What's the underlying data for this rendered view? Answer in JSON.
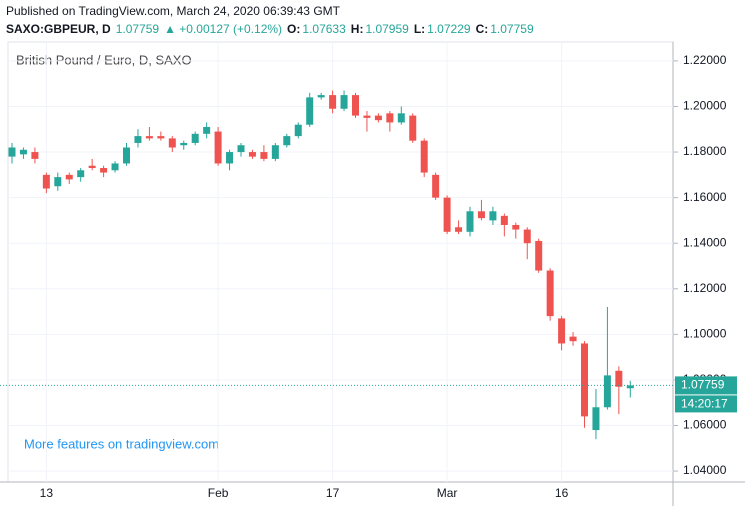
{
  "header": {
    "published": "Published on TradingView.com, March 24, 2020 06:39:43 GMT",
    "symbol": "SAXO:GBPEUR, D",
    "last": "1.07759",
    "change": "▲ +0.00127 (+0.12%)",
    "ohlc": [
      {
        "label": "O:",
        "value": "1.07633"
      },
      {
        "label": "H:",
        "value": "1.07959"
      },
      {
        "label": "L:",
        "value": "1.07229"
      },
      {
        "label": "C:",
        "value": "1.07759"
      }
    ]
  },
  "chart_data": {
    "type": "candlestick",
    "title": "British Pound / Euro, D, SAXO",
    "annotation": "More features on tradingview.com",
    "last_price": 1.07759,
    "countdown": "14:20:17",
    "up_color": "#26a69a",
    "down_color": "#ef5350",
    "grid": true,
    "ylim": [
      1.0352,
      1.2283
    ],
    "yticks": [
      {
        "value": 1.04,
        "label": "1.04000"
      },
      {
        "value": 1.06,
        "label": "1.06000"
      },
      {
        "value": 1.08,
        "label": "1.08000"
      },
      {
        "value": 1.1,
        "label": "1.10000"
      },
      {
        "value": 1.12,
        "label": "1.12000"
      },
      {
        "value": 1.14,
        "label": "1.14000"
      },
      {
        "value": 1.16,
        "label": "1.16000"
      },
      {
        "value": 1.18,
        "label": "1.18000"
      },
      {
        "value": 1.2,
        "label": "1.20000"
      },
      {
        "value": 1.22,
        "label": "1.22000"
      }
    ],
    "categories": [
      null,
      null,
      null,
      "13",
      null,
      null,
      null,
      null,
      null,
      null,
      null,
      null,
      null,
      null,
      null,
      null,
      null,
      null,
      "Feb",
      null,
      null,
      null,
      null,
      null,
      null,
      null,
      null,
      null,
      "17",
      null,
      null,
      null,
      null,
      null,
      null,
      null,
      null,
      null,
      "Mar",
      null,
      null,
      null,
      null,
      null,
      null,
      null,
      null,
      null,
      "16",
      null,
      null,
      null,
      null,
      null,
      null
    ],
    "open": [
      1.178,
      1.179,
      1.18,
      1.17,
      1.165,
      1.17,
      1.169,
      1.174,
      1.173,
      1.172,
      1.175,
      1.184,
      1.187,
      1.187,
      1.186,
      1.183,
      1.184,
      1.188,
      1.189,
      1.175,
      1.18,
      1.18,
      1.18,
      1.177,
      1.183,
      1.187,
      1.192,
      1.204,
      1.205,
      1.199,
      1.205,
      1.196,
      1.196,
      1.197,
      1.193,
      1.196,
      1.185,
      1.17,
      1.16,
      1.147,
      1.145,
      1.154,
      1.15,
      1.152,
      1.148,
      1.146,
      1.141,
      1.128,
      1.107,
      1.099,
      1.096,
      1.058,
      1.068,
      1.084,
      1.07633
    ],
    "high": [
      1.184,
      1.182,
      1.182,
      1.171,
      1.171,
      1.171,
      1.173,
      1.177,
      1.174,
      1.176,
      1.184,
      1.19,
      1.191,
      1.189,
      1.187,
      1.185,
      1.189,
      1.193,
      1.191,
      1.181,
      1.184,
      1.181,
      1.183,
      1.184,
      1.188,
      1.193,
      1.206,
      1.206,
      1.207,
      1.207,
      1.206,
      1.198,
      1.197,
      1.198,
      1.2,
      1.197,
      1.186,
      1.171,
      1.161,
      1.15,
      1.156,
      1.159,
      1.156,
      1.153,
      1.149,
      1.147,
      1.142,
      1.129,
      1.108,
      1.101,
      1.097,
      1.076,
      1.112,
      1.086,
      1.07959
    ],
    "low": [
      1.175,
      1.177,
      1.175,
      1.162,
      1.163,
      1.166,
      1.167,
      1.172,
      1.169,
      1.171,
      1.174,
      1.182,
      1.185,
      1.185,
      1.18,
      1.181,
      1.183,
      1.186,
      1.174,
      1.172,
      1.178,
      1.177,
      1.176,
      1.176,
      1.182,
      1.186,
      1.191,
      1.203,
      1.197,
      1.198,
      1.195,
      1.189,
      1.193,
      1.189,
      1.192,
      1.184,
      1.169,
      1.159,
      1.144,
      1.144,
      1.143,
      1.15,
      1.148,
      1.143,
      1.142,
      1.133,
      1.127,
      1.106,
      1.093,
      1.095,
      1.059,
      1.054,
      1.067,
      1.065,
      1.07229
    ],
    "close": [
      1.182,
      1.181,
      1.177,
      1.164,
      1.169,
      1.168,
      1.172,
      1.173,
      1.171,
      1.175,
      1.182,
      1.187,
      1.186,
      1.186,
      1.182,
      1.184,
      1.188,
      1.191,
      1.175,
      1.18,
      1.183,
      1.178,
      1.177,
      1.183,
      1.187,
      1.192,
      1.204,
      1.205,
      1.199,
      1.205,
      1.196,
      1.195,
      1.194,
      1.193,
      1.197,
      1.185,
      1.171,
      1.16,
      1.145,
      1.145,
      1.154,
      1.151,
      1.154,
      1.148,
      1.146,
      1.14,
      1.128,
      1.108,
      1.096,
      1.097,
      1.064,
      1.068,
      1.082,
      1.077,
      1.07759
    ]
  }
}
